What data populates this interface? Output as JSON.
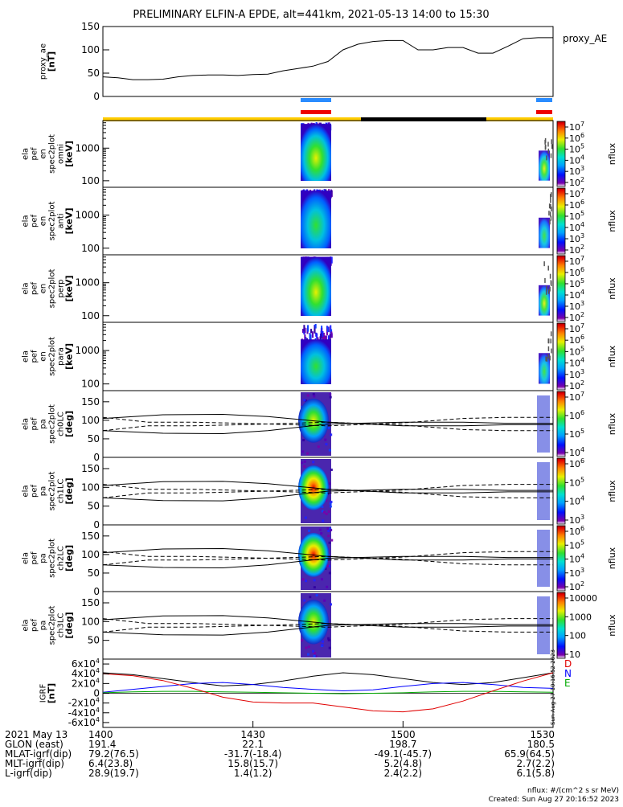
{
  "title": "PRELIMINARY ELFIN-A EPDE, alt=441km, 2021-05-13 14:00 to 15:30",
  "created": "Created: Sun Aug 27 20:16:52 2023",
  "units_note": "nflux: #/(cm^2 s sr MeV)",
  "side_stamp": "Sun Aug 27 10:16:52 2023",
  "chart_data": [
    {
      "id": "proxy_ae",
      "type": "line",
      "ylabel": [
        "proxy_ae",
        "[nT]"
      ],
      "legend": "proxy_AE",
      "ylim": [
        0,
        150
      ],
      "yticks": [
        "0",
        "50",
        "100",
        "150"
      ],
      "x": [
        14.0,
        14.05,
        14.1,
        14.15,
        14.2,
        14.25,
        14.3,
        14.35,
        14.4,
        14.45,
        14.5,
        14.55,
        14.6,
        14.65,
        14.7,
        14.75,
        14.8,
        14.85,
        14.9,
        14.95,
        15.0,
        15.05,
        15.1,
        15.15,
        15.2,
        15.25,
        15.3,
        15.35,
        15.4,
        15.45,
        15.5
      ],
      "values": [
        42,
        40,
        36,
        36,
        37,
        42,
        45,
        46,
        46,
        45,
        47,
        48,
        55,
        60,
        65,
        75,
        100,
        112,
        118,
        120,
        120,
        100,
        100,
        105,
        105,
        93,
        93,
        108,
        124,
        126,
        126
      ]
    },
    {
      "id": "en_omni",
      "type": "heatmap",
      "ylabel": [
        "ela",
        "pef",
        "en",
        "spec2plot",
        "omni",
        "[keV]"
      ],
      "ylim": [
        63,
        7000
      ],
      "yscale": "log",
      "yticks": [
        "100",
        "1000"
      ],
      "colorbar": {
        "label": "nflux",
        "ticks": [
          "10^2",
          "10^3",
          "10^4",
          "10^5",
          "10^6",
          "10^7"
        ]
      }
    },
    {
      "id": "en_anti",
      "type": "heatmap",
      "ylabel": [
        "ela",
        "pef",
        "en",
        "spec2plot",
        "anti",
        "[keV]"
      ],
      "ylim": [
        63,
        7000
      ],
      "yscale": "log",
      "yticks": [
        "100",
        "1000"
      ],
      "colorbar": {
        "label": "nflux",
        "ticks": [
          "10^2",
          "10^3",
          "10^4",
          "10^5",
          "10^6",
          "10^7"
        ]
      }
    },
    {
      "id": "en_perp",
      "type": "heatmap",
      "ylabel": [
        "ela",
        "pef",
        "en",
        "spec2plot",
        "perp",
        "[keV]"
      ],
      "ylim": [
        63,
        7000
      ],
      "yscale": "log",
      "yticks": [
        "100",
        "1000"
      ],
      "colorbar": {
        "label": "nflux",
        "ticks": [
          "10^2",
          "10^3",
          "10^4",
          "10^5",
          "10^6",
          "10^7"
        ]
      }
    },
    {
      "id": "en_para",
      "type": "heatmap",
      "ylabel": [
        "ela",
        "pef",
        "en",
        "spec2plot",
        "para",
        "[keV]"
      ],
      "ylim": [
        63,
        7000
      ],
      "yscale": "log",
      "yticks": [
        "100",
        "1000"
      ],
      "colorbar": {
        "label": "nflux",
        "ticks": [
          "10^2",
          "10^3",
          "10^4",
          "10^5",
          "10^6",
          "10^7"
        ]
      }
    },
    {
      "id": "pa_ch0",
      "type": "heatmap",
      "ylabel": [
        "ela",
        "pef",
        "pa",
        "spec2plot",
        "ch0LC",
        "[deg]"
      ],
      "ylim": [
        0,
        180
      ],
      "yticks": [
        "0",
        "50",
        "100",
        "150"
      ],
      "colorbar": {
        "label": "nflux",
        "ticks": [
          "10^4",
          "10^5",
          "10^6",
          "10^7"
        ]
      }
    },
    {
      "id": "pa_ch1",
      "type": "heatmap",
      "ylabel": [
        "ela",
        "pef",
        "pa",
        "spec2plot",
        "ch1LC",
        "[deg]"
      ],
      "ylim": [
        0,
        180
      ],
      "yticks": [
        "0",
        "50",
        "100",
        "150"
      ],
      "colorbar": {
        "label": "nflux",
        "ticks": [
          "10^3",
          "10^4",
          "10^5",
          "10^6"
        ]
      }
    },
    {
      "id": "pa_ch2",
      "type": "heatmap",
      "ylabel": [
        "ela",
        "pef",
        "pa",
        "spec2plot",
        "ch2LC",
        "[deg]"
      ],
      "ylim": [
        0,
        180
      ],
      "yticks": [
        "0",
        "50",
        "100",
        "150"
      ],
      "colorbar": {
        "label": "nflux",
        "ticks": [
          "10^2",
          "10^3",
          "10^4",
          "10^5",
          "10^6"
        ]
      }
    },
    {
      "id": "pa_ch3",
      "type": "heatmap",
      "ylabel": [
        "ela",
        "pef",
        "pa",
        "spec2plot",
        "ch3LC",
        "[deg]"
      ],
      "ylim": [
        0,
        180
      ],
      "yticks": [
        "50",
        "100",
        "150"
      ],
      "colorbar": {
        "label": "nflux",
        "ticks": [
          "10",
          "100",
          "1000",
          "10000"
        ]
      }
    },
    {
      "id": "igrf",
      "type": "line",
      "ylabel": [
        "IGRF",
        "[nT]"
      ],
      "ylim": [
        -70000,
        70000
      ],
      "yticks": [
        "6x10^4",
        "4x10^4",
        "2x10^4",
        "0",
        "-2x10^4",
        "-4x10^4",
        "-6x10^4"
      ],
      "legend": [
        "D",
        "N",
        "E"
      ],
      "colors": {
        "D": "#000000",
        "N": "#0000ff",
        "E": "#00aa00",
        "V": "#e00000"
      },
      "x": [
        14.0,
        14.1,
        14.2,
        14.3,
        14.4,
        14.5,
        14.6,
        14.7,
        14.8,
        14.9,
        15.0,
        15.1,
        15.2,
        15.3,
        15.4,
        15.5
      ],
      "series": [
        {
          "values": [
            42000,
            38000,
            30000,
            22000,
            15000,
            18000,
            25000,
            35000,
            42000,
            38000,
            30000,
            22000,
            18000,
            22000,
            32000,
            42000
          ]
        },
        {
          "values": [
            2000,
            8000,
            14000,
            20000,
            22000,
            18000,
            12000,
            8000,
            5000,
            7000,
            14000,
            20000,
            22000,
            18000,
            12000,
            10000
          ]
        },
        {
          "values": [
            1000,
            3000,
            4000,
            4000,
            3000,
            2000,
            1000,
            0,
            -1000,
            0,
            1000,
            3000,
            4000,
            4000,
            3000,
            2000
          ]
        },
        {
          "values": [
            40000,
            36000,
            26000,
            10000,
            -8000,
            -18000,
            -20000,
            -20000,
            -28000,
            -36000,
            -38000,
            -32000,
            -16000,
            5000,
            25000,
            42000
          ]
        }
      ]
    }
  ],
  "orbit_table": {
    "columns_x": [
      "1400",
      "1430",
      "1500",
      "1530"
    ],
    "rows": [
      {
        "label": "2021 May 13",
        "values": [
          "1400",
          "1430",
          "1500",
          "1530"
        ]
      },
      {
        "label": "GLON (east)",
        "values": [
          "191.4",
          "22.1",
          "198.7",
          "180.5"
        ]
      },
      {
        "label": "MLAT-igrf(dip)",
        "values": [
          "79.2(76.5)",
          "-31.7(-18.4)",
          "-49.1(-45.7)",
          "65.9(64.5)"
        ]
      },
      {
        "label": "MLT-igrf(dip)",
        "values": [
          "6.4(23.8)",
          "15.8(15.7)",
          "5.2(4.8)",
          "2.7(2.2)"
        ]
      },
      {
        "label": "L-igrf(dip)",
        "values": [
          "28.9(19.7)",
          "1.4(1.2)",
          "2.4(2.2)",
          "6.1(5.8)"
        ]
      }
    ]
  }
}
